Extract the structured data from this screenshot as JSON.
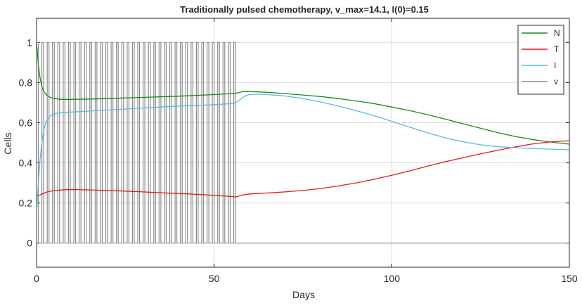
{
  "chart_data": {
    "type": "line",
    "title": "Traditionally pulsed chemotherapy, v_max=14.1, I(0)=0.15",
    "xlabel": "Days",
    "ylabel": "Cells",
    "xlim": [
      0,
      150
    ],
    "ylim": [
      -0.12,
      1.12
    ],
    "x_ticks": [
      0,
      50,
      100,
      150
    ],
    "y_ticks": [
      0,
      0.2,
      0.4,
      0.6,
      0.8,
      1
    ],
    "x_tick_labels": [
      "0",
      "50",
      "100",
      "150"
    ],
    "y_tick_labels": [
      "0",
      "0.2",
      "0.4",
      "0.6",
      "0.8",
      "1"
    ],
    "grid": true,
    "legend_position": "top-right",
    "series": [
      {
        "name": "N",
        "color": "#1a8a1a",
        "x": [
          0,
          0.5,
          1,
          1.5,
          2,
          3,
          4,
          5,
          7,
          10,
          15,
          20,
          25,
          30,
          35,
          40,
          45,
          50,
          55,
          56,
          57,
          58,
          60,
          65,
          70,
          75,
          80,
          85,
          90,
          95,
          100,
          105,
          110,
          115,
          120,
          125,
          130,
          135,
          140,
          145,
          150
        ],
        "y": [
          1.0,
          0.89,
          0.82,
          0.78,
          0.755,
          0.735,
          0.725,
          0.72,
          0.716,
          0.716,
          0.718,
          0.72,
          0.723,
          0.726,
          0.729,
          0.732,
          0.736,
          0.74,
          0.745,
          0.746,
          0.75,
          0.755,
          0.755,
          0.751,
          0.745,
          0.738,
          0.73,
          0.72,
          0.708,
          0.695,
          0.678,
          0.66,
          0.64,
          0.618,
          0.595,
          0.572,
          0.55,
          0.53,
          0.515,
          0.503,
          0.493
        ]
      },
      {
        "name": "T",
        "color": "#e01a1a",
        "x": [
          0,
          1,
          2,
          3,
          5,
          8,
          10,
          15,
          20,
          25,
          30,
          35,
          40,
          45,
          50,
          55,
          56,
          57,
          58,
          60,
          65,
          70,
          75,
          80,
          85,
          90,
          95,
          100,
          105,
          110,
          115,
          120,
          125,
          130,
          135,
          140,
          145,
          150
        ],
        "y": [
          0.235,
          0.24,
          0.248,
          0.255,
          0.262,
          0.266,
          0.267,
          0.265,
          0.262,
          0.259,
          0.255,
          0.251,
          0.247,
          0.243,
          0.238,
          0.232,
          0.23,
          0.235,
          0.24,
          0.245,
          0.25,
          0.255,
          0.262,
          0.272,
          0.285,
          0.3,
          0.318,
          0.338,
          0.36,
          0.383,
          0.405,
          0.425,
          0.445,
          0.463,
          0.48,
          0.495,
          0.505,
          0.51
        ]
      },
      {
        "name": "I",
        "color": "#55bde0",
        "x": [
          0,
          0.5,
          1,
          1.5,
          2,
          2.5,
          3,
          4,
          5,
          7,
          10,
          15,
          20,
          25,
          30,
          35,
          40,
          45,
          50,
          55,
          56,
          57,
          58,
          59,
          60,
          62,
          65,
          70,
          75,
          80,
          85,
          90,
          95,
          100,
          105,
          110,
          115,
          120,
          125,
          130,
          135,
          140,
          145,
          150
        ],
        "y": [
          0.15,
          0.3,
          0.42,
          0.5,
          0.56,
          0.595,
          0.615,
          0.635,
          0.645,
          0.65,
          0.653,
          0.658,
          0.663,
          0.668,
          0.673,
          0.678,
          0.683,
          0.686,
          0.69,
          0.695,
          0.7,
          0.71,
          0.725,
          0.735,
          0.74,
          0.742,
          0.74,
          0.733,
          0.72,
          0.703,
          0.683,
          0.66,
          0.635,
          0.607,
          0.578,
          0.55,
          0.525,
          0.505,
          0.49,
          0.48,
          0.475,
          0.471,
          0.468,
          0.465
        ]
      },
      {
        "name": "v",
        "color": "#8c8c8c",
        "pulse_period_days": 1.5,
        "pulse_width_days": 0.5,
        "pulse_end_day": 57,
        "values": [
          0,
          1
        ]
      }
    ]
  }
}
